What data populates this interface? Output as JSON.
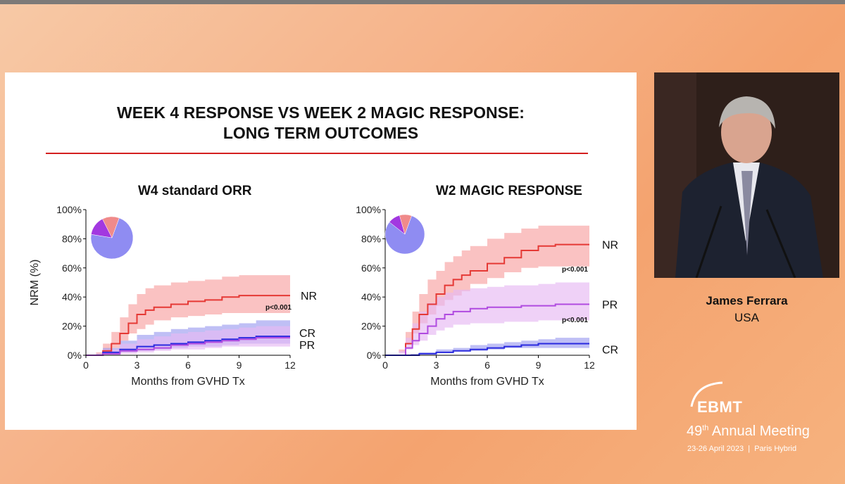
{
  "slide": {
    "title_line1": "WEEK 4 RESPONSE VS WEEK 2 MAGIC RESPONSE:",
    "title_line2": "LONG TERM OUTCOMES"
  },
  "speaker": {
    "name": "James Ferrara",
    "country": "USA"
  },
  "event": {
    "logo_text": "EBMT",
    "meeting_number": "49",
    "meeting_suffix": "th",
    "meeting_name": "Annual Meeting",
    "dates": "23-26 April 2023",
    "location": "Paris Hybrid"
  },
  "colors": {
    "NR": "#e53935",
    "PR": "#b04be0",
    "CR": "#2a2adf"
  },
  "chart_data": [
    {
      "type": "line",
      "title": "W4 standard ORR",
      "xlabel": "Months from GVHD Tx",
      "ylabel": "NRM (%)",
      "xlim": [
        0,
        12
      ],
      "ylim": [
        0,
        100
      ],
      "xticks": [
        "0",
        "3",
        "6",
        "9",
        "12"
      ],
      "yticks": [
        "0%",
        "20%",
        "40%",
        "60%",
        "80%",
        "100%"
      ],
      "pvalue": "p<0.001",
      "series": [
        {
          "name": "NR",
          "x": [
            0,
            0.6,
            1,
            1.5,
            2,
            2.5,
            3,
            3.5,
            4,
            5,
            6,
            7,
            8,
            9,
            10,
            11,
            12
          ],
          "y": [
            0,
            0,
            3,
            8,
            15,
            22,
            28,
            31,
            33,
            35,
            37,
            38,
            40,
            41,
            41,
            41,
            41
          ],
          "lower": [
            0,
            0,
            0,
            2,
            5,
            10,
            15,
            18,
            21,
            24,
            26,
            27,
            28,
            29,
            29,
            29,
            29
          ],
          "upper": [
            0,
            2,
            8,
            16,
            26,
            35,
            42,
            46,
            48,
            50,
            51,
            52,
            54,
            55,
            55,
            55,
            55
          ]
        },
        {
          "name": "CR",
          "x": [
            0,
            0.6,
            1,
            2,
            3,
            4,
            5,
            6,
            7,
            8,
            9,
            10,
            11,
            12
          ],
          "y": [
            0,
            0,
            2,
            4,
            6,
            7,
            8,
            9,
            10,
            11,
            12,
            13,
            13,
            13
          ],
          "lower": [
            0,
            0,
            0,
            1,
            2,
            3,
            4,
            5,
            6,
            6,
            7,
            8,
            8,
            8
          ],
          "upper": [
            0,
            1,
            5,
            10,
            14,
            16,
            18,
            19,
            20,
            21,
            22,
            24,
            24,
            24
          ]
        },
        {
          "name": "PR",
          "x": [
            0,
            0.6,
            1,
            2,
            3,
            4,
            5,
            6,
            7,
            8,
            9,
            10,
            11,
            12
          ],
          "y": [
            0,
            0,
            1,
            3,
            4,
            5,
            7,
            8,
            9,
            10,
            11,
            12,
            12,
            12
          ],
          "lower": [
            0,
            0,
            0,
            0,
            1,
            2,
            3,
            4,
            4,
            5,
            6,
            6,
            6,
            6
          ],
          "upper": [
            0,
            1,
            4,
            8,
            11,
            13,
            15,
            16,
            17,
            18,
            19,
            20,
            20,
            20
          ]
        }
      ],
      "pie": [
        {
          "name": "CR",
          "share": 0.72,
          "color": "#8f8cf2"
        },
        {
          "name": "PR",
          "share": 0.15,
          "color": "#a238e0"
        },
        {
          "name": "NR",
          "share": 0.13,
          "color": "#f08a8a"
        }
      ]
    },
    {
      "type": "line",
      "title": "W2 MAGIC RESPONSE",
      "xlabel": "Months from GVHD Tx",
      "ylabel": "",
      "xlim": [
        0,
        12
      ],
      "ylim": [
        0,
        100
      ],
      "xticks": [
        "0",
        "3",
        "6",
        "9",
        "12"
      ],
      "yticks": [
        "0%",
        "20%",
        "40%",
        "60%",
        "80%",
        "100%"
      ],
      "pvalues": [
        "p<0.001",
        "p<0.001"
      ],
      "series": [
        {
          "name": "NR",
          "x": [
            0,
            0.8,
            1.2,
            1.6,
            2,
            2.5,
            3,
            3.5,
            4,
            4.5,
            5,
            6,
            7,
            8,
            9,
            10,
            11,
            12
          ],
          "y": [
            0,
            0,
            8,
            18,
            28,
            35,
            42,
            48,
            52,
            55,
            58,
            63,
            67,
            72,
            75,
            76,
            76,
            76
          ],
          "lower": [
            0,
            0,
            2,
            8,
            15,
            22,
            28,
            34,
            38,
            41,
            44,
            49,
            53,
            57,
            60,
            61,
            61,
            61
          ],
          "upper": [
            0,
            4,
            16,
            30,
            42,
            52,
            58,
            64,
            68,
            72,
            75,
            80,
            84,
            87,
            89,
            89,
            89,
            89
          ]
        },
        {
          "name": "PR",
          "x": [
            0,
            0.8,
            1.2,
            1.6,
            2,
            2.5,
            3,
            3.5,
            4,
            5,
            6,
            7,
            8,
            9,
            10,
            11,
            12
          ],
          "y": [
            0,
            0,
            5,
            10,
            15,
            20,
            25,
            28,
            30,
            32,
            33,
            33,
            34,
            34,
            35,
            35,
            35
          ],
          "lower": [
            0,
            0,
            1,
            4,
            7,
            10,
            14,
            17,
            19,
            21,
            22,
            22,
            23,
            23,
            24,
            24,
            24
          ],
          "upper": [
            0,
            3,
            12,
            22,
            30,
            36,
            40,
            43,
            45,
            46,
            47,
            48,
            48,
            49,
            50,
            50,
            50
          ]
        },
        {
          "name": "CR",
          "x": [
            0,
            0.8,
            1.5,
            2,
            3,
            4,
            5,
            6,
            7,
            8,
            9,
            10,
            11,
            12
          ],
          "y": [
            0,
            0,
            0,
            1,
            2,
            3,
            4,
            5,
            6,
            7,
            8,
            8,
            8,
            8
          ],
          "lower": [
            0,
            0,
            0,
            0,
            1,
            2,
            3,
            3,
            4,
            5,
            5,
            5,
            5,
            5
          ],
          "upper": [
            0,
            0,
            1,
            2,
            4,
            5,
            7,
            8,
            9,
            10,
            11,
            12,
            12,
            12
          ]
        }
      ],
      "pie": [
        {
          "name": "CR",
          "share": 0.8,
          "color": "#8f8cf2"
        },
        {
          "name": "PR",
          "share": 0.1,
          "color": "#a238e0"
        },
        {
          "name": "NR",
          "share": 0.1,
          "color": "#f08a8a"
        }
      ]
    }
  ]
}
